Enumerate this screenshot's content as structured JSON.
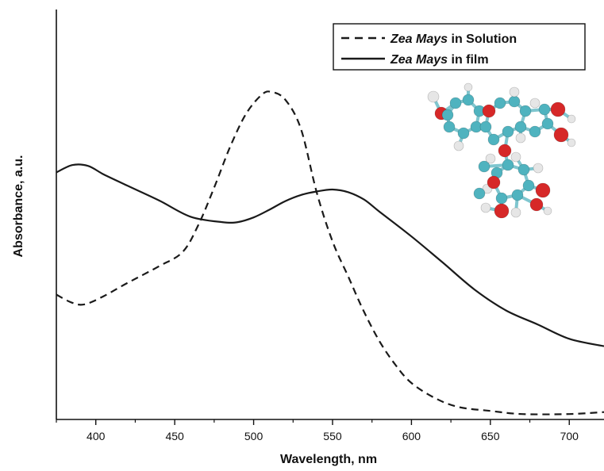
{
  "chart_data": {
    "type": "line",
    "title": "",
    "xlabel": "Wavelength, nm",
    "ylabel": "Absorbance, a.u.",
    "xlim": [
      375,
      722
    ],
    "ylim": [
      0,
      1
    ],
    "x_ticks": [
      400,
      450,
      500,
      550,
      600,
      650,
      700
    ],
    "x_tick_labels": [
      "400",
      "450",
      "500",
      "550",
      "600",
      "650",
      "700"
    ],
    "y_ticks_labeled": false,
    "grid": false,
    "legend_position": "top-right",
    "series": [
      {
        "name": "Zea Mays in Solution",
        "name_italic_part": "Zea Mays",
        "name_rest": " in Solution",
        "line_style": "dashed",
        "color": "#1a1a1a",
        "x": [
          375,
          385,
          393,
          405,
          420,
          440,
          455,
          465,
          475,
          485,
          495,
          505,
          511,
          520,
          530,
          540,
          550,
          560,
          570,
          580,
          590,
          600,
          615,
          630,
          650,
          670,
          700,
          722
        ],
        "y": [
          0.322,
          0.301,
          0.297,
          0.318,
          0.352,
          0.395,
          0.432,
          0.502,
          0.598,
          0.702,
          0.787,
          0.837,
          0.845,
          0.825,
          0.749,
          0.585,
          0.459,
          0.368,
          0.277,
          0.2,
          0.14,
          0.094,
          0.055,
          0.032,
          0.022,
          0.014,
          0.014,
          0.019
        ]
      },
      {
        "name": "Zea Mays in film",
        "name_italic_part": "Zea Mays",
        "name_rest": " in film",
        "line_style": "solid",
        "color": "#1a1a1a",
        "x": [
          375,
          385,
          395,
          405,
          420,
          440,
          460,
          480,
          490,
          500,
          510,
          520,
          530,
          540,
          550,
          560,
          570,
          580,
          600,
          620,
          640,
          660,
          680,
          700,
          722
        ],
        "y": [
          0.637,
          0.656,
          0.654,
          0.632,
          0.603,
          0.565,
          0.523,
          0.509,
          0.509,
          0.521,
          0.541,
          0.563,
          0.579,
          0.588,
          0.593,
          0.586,
          0.567,
          0.535,
          0.472,
          0.404,
          0.335,
          0.281,
          0.245,
          0.208,
          0.189
        ]
      }
    ]
  },
  "inset": {
    "description_icon": "molecule-structure-icon",
    "colors": {
      "carbon": "#4fb3bf",
      "oxygen": "#d62828",
      "hydrogen": "#e6e6e6"
    }
  }
}
